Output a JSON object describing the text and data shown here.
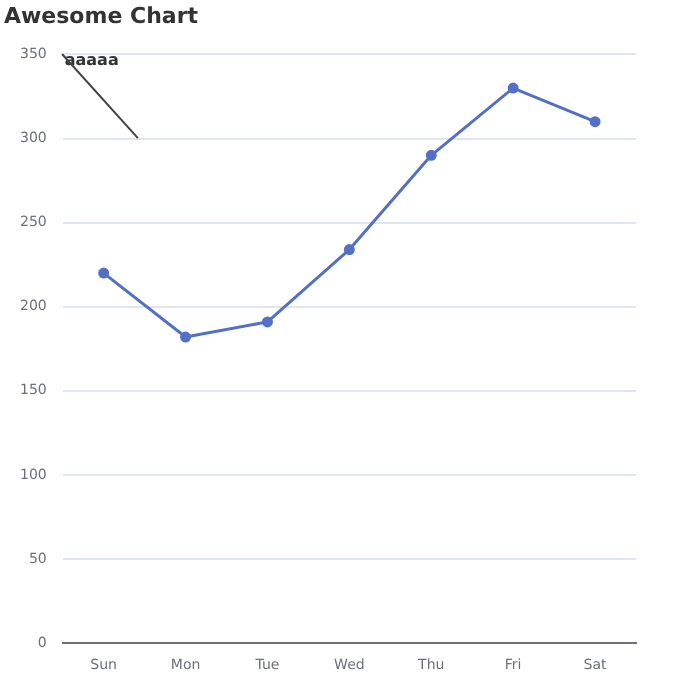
{
  "chart_data": {
    "type": "line",
    "title": "Awesome Chart",
    "categories": [
      "Sun",
      "Mon",
      "Tue",
      "Wed",
      "Thu",
      "Fri",
      "Sat"
    ],
    "series": [
      {
        "color": "#5470c6",
        "values": [
          220,
          182,
          191,
          234,
          290,
          330,
          310
        ]
      }
    ],
    "ylim": [
      0,
      350
    ],
    "yticks": [
      0,
      50,
      100,
      150,
      200,
      250,
      300,
      350
    ],
    "grid": "y",
    "legend": false,
    "marker": "circle",
    "line_style": "solid",
    "annotations": [
      "aaaaa"
    ]
  }
}
